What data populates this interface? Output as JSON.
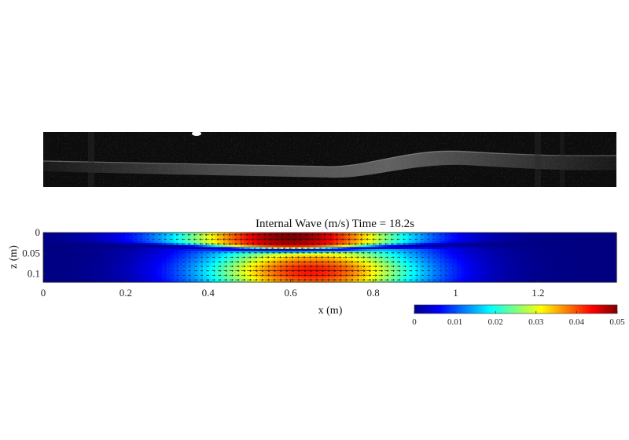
{
  "chart_data": {
    "type": "heatmap",
    "title": "Internal Wave (m/s)  Time = 18.2s",
    "xlabel": "x (m)",
    "ylabel": "z (m)",
    "xlim": [
      0,
      1.39
    ],
    "ylim": [
      0,
      0.12
    ],
    "y_reversed": true,
    "xticks": [
      0,
      0.2,
      0.4,
      0.6,
      0.8,
      1,
      1.2
    ],
    "xtick_labels": [
      "0",
      "0.2",
      "0.4",
      "0.6",
      "0.8",
      "1",
      "1.2"
    ],
    "yticks": [
      0,
      0.05,
      0.1
    ],
    "ytick_labels": [
      "0",
      "0.05",
      "0.1"
    ],
    "colorbar": {
      "colormap": "jet",
      "range": [
        0,
        0.05
      ],
      "ticks": [
        0,
        0.01,
        0.02,
        0.03,
        0.04,
        0.05
      ],
      "tick_labels": [
        "0",
        "0.01",
        "0.02",
        "0.03",
        "0.04",
        "0.05"
      ],
      "placement": "bottom-right"
    },
    "field": {
      "description_of_structure": "two-layer internal solitary wave; speed peaks in upper layer near x=0.6 and lower layer near x=0.65, separated by a low-speed interface band near z=0.05",
      "upper_layer": {
        "center_x": 0.6,
        "peak_z": 0.012,
        "peak_speed": 0.05,
        "half_width_x": 0.28
      },
      "lower_layer": {
        "center_x": 0.65,
        "peak_z": 0.095,
        "peak_speed": 0.043,
        "half_width_x": 0.27
      },
      "interface": {
        "z_center": 0.043,
        "z_edge": 0.028,
        "extent_x": [
          0.2,
          1.1
        ]
      },
      "arrows": "velocity vectors point in -x in the upper layer and +x in the lower layer"
    }
  },
  "photo": {
    "description": "grayscale particle image of the tank showing the internal wave interface",
    "subject": "particle-image strip"
  }
}
